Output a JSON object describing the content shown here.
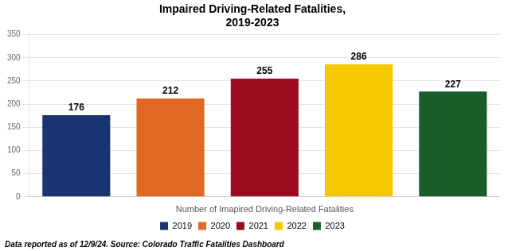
{
  "chart_data": {
    "type": "bar",
    "title": "Impaired Driving-Related Fatalities,\n2019-2023",
    "xlabel": "Number of Imapired Driving-Related Fatalities",
    "footer": "Data reported as of 12/9/24. Source: Colorado Traffic Fatalities Dashboard",
    "categories": [
      "2019",
      "2020",
      "2021",
      "2022",
      "2023"
    ],
    "values": [
      176,
      212,
      255,
      286,
      227
    ],
    "colors": [
      "#1a3472",
      "#e06820",
      "#9b0a1e",
      "#f5c800",
      "#1a5c2a"
    ],
    "ylim": [
      0,
      350
    ],
    "yticks": [
      0,
      50,
      100,
      150,
      200,
      250,
      300,
      350
    ],
    "grid": true,
    "legend": "bottom",
    "data_labels": true,
    "tick_labels": "y"
  }
}
